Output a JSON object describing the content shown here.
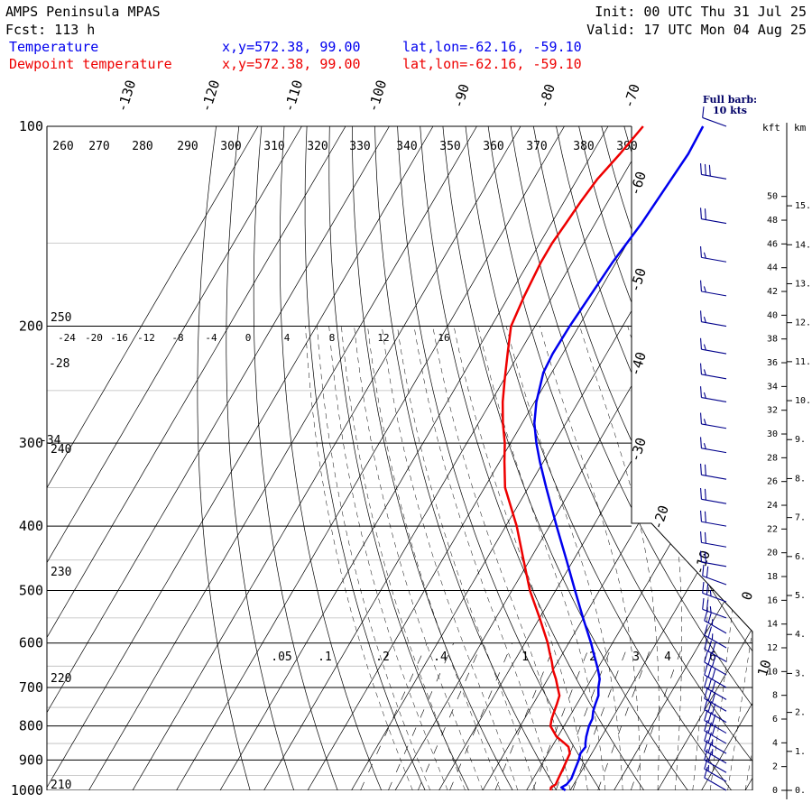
{
  "header": {
    "title": "AMPS Peninsula MPAS",
    "forecast": "Fcst:  113 h",
    "init": "Init: 00 UTC Thu 31 Jul 25",
    "valid": "Valid: 17 UTC Mon 04 Aug 25",
    "legend": [
      {
        "label": "Temperature",
        "xy": "x,y=572.38, 99.00",
        "latlon": "lat,lon=-62.16, -59.10",
        "color": "#0000ee"
      },
      {
        "label": "Dewpoint temperature",
        "xy": "x,y=572.38, 99.00",
        "latlon": "lat,lon=-62.16, -59.10",
        "color": "#ee0000"
      }
    ]
  },
  "wind_legend": {
    "title": "Full barb:",
    "value": "10 kts"
  },
  "height_axis": {
    "kft_label": "kft",
    "km_label": "km",
    "kft_ticks": [
      "0",
      "2",
      "4",
      "6",
      "8",
      "10",
      "12",
      "14",
      "16",
      "18",
      "20",
      "22",
      "24",
      "26",
      "28",
      "30",
      "32",
      "34",
      "36",
      "38",
      "40",
      "42",
      "44",
      "46",
      "48",
      "50"
    ],
    "km_ticks": [
      "0.",
      "1.",
      "2.",
      "3.",
      "4.",
      "5.",
      "6.",
      "7.",
      "8.",
      "9.",
      "10.",
      "11.",
      "12.",
      "13.",
      "14.",
      "15."
    ]
  },
  "chart_data": {
    "type": "line",
    "title": "",
    "y_axis": {
      "label": "",
      "scale": "log-pressure",
      "unit": "hPa",
      "ticks": [
        "100",
        "200",
        "300",
        "400",
        "500",
        "600",
        "700",
        "800",
        "900",
        "1000"
      ]
    },
    "isotherm_labels": [
      "-130",
      "-120",
      "-110",
      "-100",
      "-90",
      "-80",
      "-70",
      "-60",
      "-50",
      "-40",
      "-30",
      "-20",
      "-10",
      "0",
      "10"
    ],
    "theta_labels": [
      "260",
      "270",
      "280",
      "290",
      "300",
      "310",
      "320",
      "330",
      "340",
      "350",
      "360",
      "370",
      "380",
      "390"
    ],
    "upper_temp_scale": [
      "-24",
      "-20",
      "-16",
      "-12",
      "-8",
      "-4",
      "0",
      "4",
      "8",
      "12",
      "16"
    ],
    "theta_left_labels": [
      "250",
      "240",
      "230",
      "220",
      "210",
      "-28",
      "-34"
    ],
    "mixing_ratio_labels": [
      ".05",
      ".1",
      ".2",
      ".4",
      "1",
      "2",
      "3",
      "4",
      "6"
    ],
    "series": [
      {
        "name": "Temperature",
        "color": "#0000ee",
        "points": [
          [
            1000,
            -1.1
          ],
          [
            990,
            -2.4
          ],
          [
            980,
            -1.6
          ],
          [
            960,
            -1.3
          ],
          [
            930,
            -1.7
          ],
          [
            900,
            -2.1
          ],
          [
            880,
            -2.6
          ],
          [
            860,
            -2.3
          ],
          [
            850,
            -2.8
          ],
          [
            830,
            -3.5
          ],
          [
            800,
            -4.3
          ],
          [
            780,
            -4.5
          ],
          [
            760,
            -5.3
          ],
          [
            740,
            -5.8
          ],
          [
            720,
            -6.2
          ],
          [
            700,
            -7.3
          ],
          [
            680,
            -8.1
          ],
          [
            660,
            -9.6
          ],
          [
            640,
            -11.3
          ],
          [
            620,
            -13.1
          ],
          [
            600,
            -14.9
          ],
          [
            550,
            -20.1
          ],
          [
            500,
            -25.6
          ],
          [
            450,
            -31.6
          ],
          [
            400,
            -38.4
          ],
          [
            350,
            -45.9
          ],
          [
            320,
            -50.8
          ],
          [
            300,
            -54.1
          ],
          [
            280,
            -57.2
          ],
          [
            260,
            -59.6
          ],
          [
            250,
            -60.5
          ],
          [
            235,
            -61.9
          ],
          [
            220,
            -62.3
          ],
          [
            200,
            -62.1
          ],
          [
            180,
            -61.5
          ],
          [
            160,
            -60.8
          ],
          [
            140,
            -59.4
          ],
          [
            120,
            -58.5
          ],
          [
            110,
            -58.0
          ],
          [
            100,
            -58.3
          ]
        ]
      },
      {
        "name": "Dewpoint temperature",
        "color": "#ee0000",
        "points": [
          [
            1000,
            -4.5
          ],
          [
            990,
            -4.8
          ],
          [
            980,
            -4.1
          ],
          [
            960,
            -4.3
          ],
          [
            930,
            -4.5
          ],
          [
            900,
            -4.8
          ],
          [
            880,
            -5.0
          ],
          [
            860,
            -6.2
          ],
          [
            850,
            -7.5
          ],
          [
            830,
            -10.3
          ],
          [
            800,
            -13.1
          ],
          [
            780,
            -13.8
          ],
          [
            760,
            -14.2
          ],
          [
            740,
            -14.6
          ],
          [
            720,
            -15.1
          ],
          [
            700,
            -16.6
          ],
          [
            680,
            -18.1
          ],
          [
            660,
            -19.9
          ],
          [
            640,
            -21.4
          ],
          [
            620,
            -23.1
          ],
          [
            600,
            -24.8
          ],
          [
            550,
            -30.0
          ],
          [
            500,
            -35.9
          ],
          [
            450,
            -41.4
          ],
          [
            400,
            -47.5
          ],
          [
            350,
            -55.3
          ],
          [
            320,
            -58.9
          ],
          [
            300,
            -61.3
          ],
          [
            280,
            -64.4
          ],
          [
            260,
            -67.3
          ],
          [
            240,
            -69.9
          ],
          [
            220,
            -72.6
          ],
          [
            200,
            -75.5
          ],
          [
            180,
            -76.5
          ],
          [
            160,
            -77.2
          ],
          [
            150,
            -77.2
          ],
          [
            140,
            -76.7
          ],
          [
            130,
            -76.2
          ],
          [
            120,
            -75.4
          ],
          [
            110,
            -73.6
          ],
          [
            100,
            -72.0
          ]
        ]
      }
    ],
    "wind_profile": [
      {
        "p": 1000,
        "speed": 10,
        "dir": 300
      },
      {
        "p": 970,
        "speed": 15,
        "dir": 300
      },
      {
        "p": 940,
        "speed": 20,
        "dir": 300
      },
      {
        "p": 910,
        "speed": 25,
        "dir": 300
      },
      {
        "p": 880,
        "speed": 25,
        "dir": 300
      },
      {
        "p": 850,
        "speed": 30,
        "dir": 300
      },
      {
        "p": 820,
        "speed": 30,
        "dir": 300
      },
      {
        "p": 790,
        "speed": 30,
        "dir": 300
      },
      {
        "p": 760,
        "speed": 30,
        "dir": 300
      },
      {
        "p": 730,
        "speed": 30,
        "dir": 300
      },
      {
        "p": 700,
        "speed": 30,
        "dir": 300
      },
      {
        "p": 670,
        "speed": 30,
        "dir": 300
      },
      {
        "p": 640,
        "speed": 30,
        "dir": 300
      },
      {
        "p": 610,
        "speed": 25,
        "dir": 300
      },
      {
        "p": 580,
        "speed": 25,
        "dir": 300
      },
      {
        "p": 550,
        "speed": 25,
        "dir": 290
      },
      {
        "p": 520,
        "speed": 25,
        "dir": 290
      },
      {
        "p": 490,
        "speed": 20,
        "dir": 290
      },
      {
        "p": 460,
        "speed": 20,
        "dir": 280
      },
      {
        "p": 430,
        "speed": 20,
        "dir": 280
      },
      {
        "p": 400,
        "speed": 20,
        "dir": 280
      },
      {
        "p": 370,
        "speed": 20,
        "dir": 280
      },
      {
        "p": 340,
        "speed": 20,
        "dir": 280
      },
      {
        "p": 310,
        "speed": 15,
        "dir": 280
      },
      {
        "p": 285,
        "speed": 15,
        "dir": 280
      },
      {
        "p": 260,
        "speed": 15,
        "dir": 280
      },
      {
        "p": 240,
        "speed": 15,
        "dir": 280
      },
      {
        "p": 220,
        "speed": 15,
        "dir": 280
      },
      {
        "p": 200,
        "speed": 15,
        "dir": 280
      },
      {
        "p": 180,
        "speed": 15,
        "dir": 280
      },
      {
        "p": 160,
        "speed": 15,
        "dir": 280
      },
      {
        "p": 140,
        "speed": 20,
        "dir": 280
      },
      {
        "p": 120,
        "speed": 30,
        "dir": 280
      },
      {
        "p": 100,
        "speed": 10,
        "dir": 290
      }
    ]
  }
}
